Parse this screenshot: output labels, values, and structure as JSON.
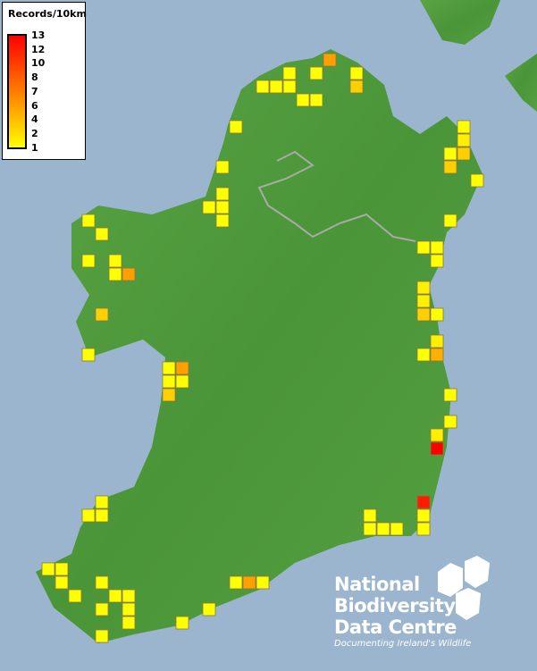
{
  "legend": {
    "title": "Records/10km",
    "ticks": [
      "13",
      "12",
      "10",
      "8",
      "7",
      "6",
      "4",
      "2",
      "1"
    ],
    "color_low": "#ffff00",
    "color_mid": "#ff8a00",
    "color_high": "#ff0000"
  },
  "logo": {
    "line1": "National",
    "line2": "Biodiversity",
    "line3": "Data Centre",
    "tagline": "Documenting Ireland's Wildlife"
  },
  "colors": {
    "sea": "#9bb5cf",
    "land": "#4f9a3c",
    "border": "#aaaaaa"
  },
  "records": [
    {
      "col": 21,
      "row": 5,
      "count": 1
    },
    {
      "col": 23,
      "row": 5,
      "count": 1
    },
    {
      "col": 24,
      "row": 4,
      "count": 7
    },
    {
      "col": 26,
      "row": 5,
      "count": 1
    },
    {
      "col": 26,
      "row": 6,
      "count": 4
    },
    {
      "col": 19,
      "row": 6,
      "count": 1
    },
    {
      "col": 20,
      "row": 6,
      "count": 1
    },
    {
      "col": 21,
      "row": 6,
      "count": 1
    },
    {
      "col": 22,
      "row": 7,
      "count": 1
    },
    {
      "col": 23,
      "row": 7,
      "count": 1
    },
    {
      "col": 17,
      "row": 9,
      "count": 1
    },
    {
      "col": 16,
      "row": 12,
      "count": 1
    },
    {
      "col": 16,
      "row": 14,
      "count": 1
    },
    {
      "col": 15,
      "row": 15,
      "count": 1
    },
    {
      "col": 16,
      "row": 15,
      "count": 1
    },
    {
      "col": 16,
      "row": 16,
      "count": 1
    },
    {
      "col": 34,
      "row": 9,
      "count": 1
    },
    {
      "col": 34,
      "row": 10,
      "count": 2
    },
    {
      "col": 33,
      "row": 11,
      "count": 1
    },
    {
      "col": 34,
      "row": 11,
      "count": 4
    },
    {
      "col": 33,
      "row": 12,
      "count": 4
    },
    {
      "col": 35,
      "row": 13,
      "count": 1
    },
    {
      "col": 33,
      "row": 16,
      "count": 1
    },
    {
      "col": 31,
      "row": 18,
      "count": 1
    },
    {
      "col": 32,
      "row": 18,
      "count": 1
    },
    {
      "col": 32,
      "row": 19,
      "count": 1
    },
    {
      "col": 31,
      "row": 21,
      "count": 2
    },
    {
      "col": 31,
      "row": 22,
      "count": 2
    },
    {
      "col": 31,
      "row": 23,
      "count": 4
    },
    {
      "col": 32,
      "row": 23,
      "count": 1
    },
    {
      "col": 32,
      "row": 25,
      "count": 2
    },
    {
      "col": 31,
      "row": 26,
      "count": 1
    },
    {
      "col": 32,
      "row": 26,
      "count": 6
    },
    {
      "col": 33,
      "row": 29,
      "count": 1
    },
    {
      "col": 33,
      "row": 31,
      "count": 1
    },
    {
      "col": 32,
      "row": 32,
      "count": 2
    },
    {
      "col": 32,
      "row": 33,
      "count": 13
    },
    {
      "col": 31,
      "row": 37,
      "count": 12
    },
    {
      "col": 31,
      "row": 38,
      "count": 1
    },
    {
      "col": 31,
      "row": 39,
      "count": 1
    },
    {
      "col": 27,
      "row": 38,
      "count": 1
    },
    {
      "col": 27,
      "row": 39,
      "count": 1
    },
    {
      "col": 28,
      "row": 39,
      "count": 1
    },
    {
      "col": 29,
      "row": 39,
      "count": 1
    },
    {
      "col": 6,
      "row": 16,
      "count": 1
    },
    {
      "col": 7,
      "row": 17,
      "count": 1
    },
    {
      "col": 6,
      "row": 19,
      "count": 1
    },
    {
      "col": 8,
      "row": 19,
      "count": 1
    },
    {
      "col": 8,
      "row": 20,
      "count": 1
    },
    {
      "col": 9,
      "row": 20,
      "count": 7
    },
    {
      "col": 7,
      "row": 23,
      "count": 4
    },
    {
      "col": 6,
      "row": 26,
      "count": 1
    },
    {
      "col": 12,
      "row": 27,
      "count": 1
    },
    {
      "col": 13,
      "row": 27,
      "count": 7
    },
    {
      "col": 12,
      "row": 28,
      "count": 1
    },
    {
      "col": 13,
      "row": 28,
      "count": 1
    },
    {
      "col": 12,
      "row": 29,
      "count": 4
    },
    {
      "col": 7,
      "row": 37,
      "count": 1
    },
    {
      "col": 6,
      "row": 38,
      "count": 1
    },
    {
      "col": 7,
      "row": 38,
      "count": 1
    },
    {
      "col": 3,
      "row": 42,
      "count": 1
    },
    {
      "col": 4,
      "row": 42,
      "count": 1
    },
    {
      "col": 4,
      "row": 43,
      "count": 1
    },
    {
      "col": 5,
      "row": 44,
      "count": 1
    },
    {
      "col": 7,
      "row": 43,
      "count": 1
    },
    {
      "col": 8,
      "row": 44,
      "count": 1
    },
    {
      "col": 9,
      "row": 44,
      "count": 1
    },
    {
      "col": 7,
      "row": 45,
      "count": 1
    },
    {
      "col": 9,
      "row": 45,
      "count": 1
    },
    {
      "col": 9,
      "row": 46,
      "count": 1
    },
    {
      "col": 13,
      "row": 46,
      "count": 1
    },
    {
      "col": 15,
      "row": 45,
      "count": 1
    },
    {
      "col": 7,
      "row": 47,
      "count": 1
    },
    {
      "col": 17,
      "row": 43,
      "count": 1
    },
    {
      "col": 18,
      "row": 43,
      "count": 7
    },
    {
      "col": 19,
      "row": 43,
      "count": 1
    }
  ]
}
